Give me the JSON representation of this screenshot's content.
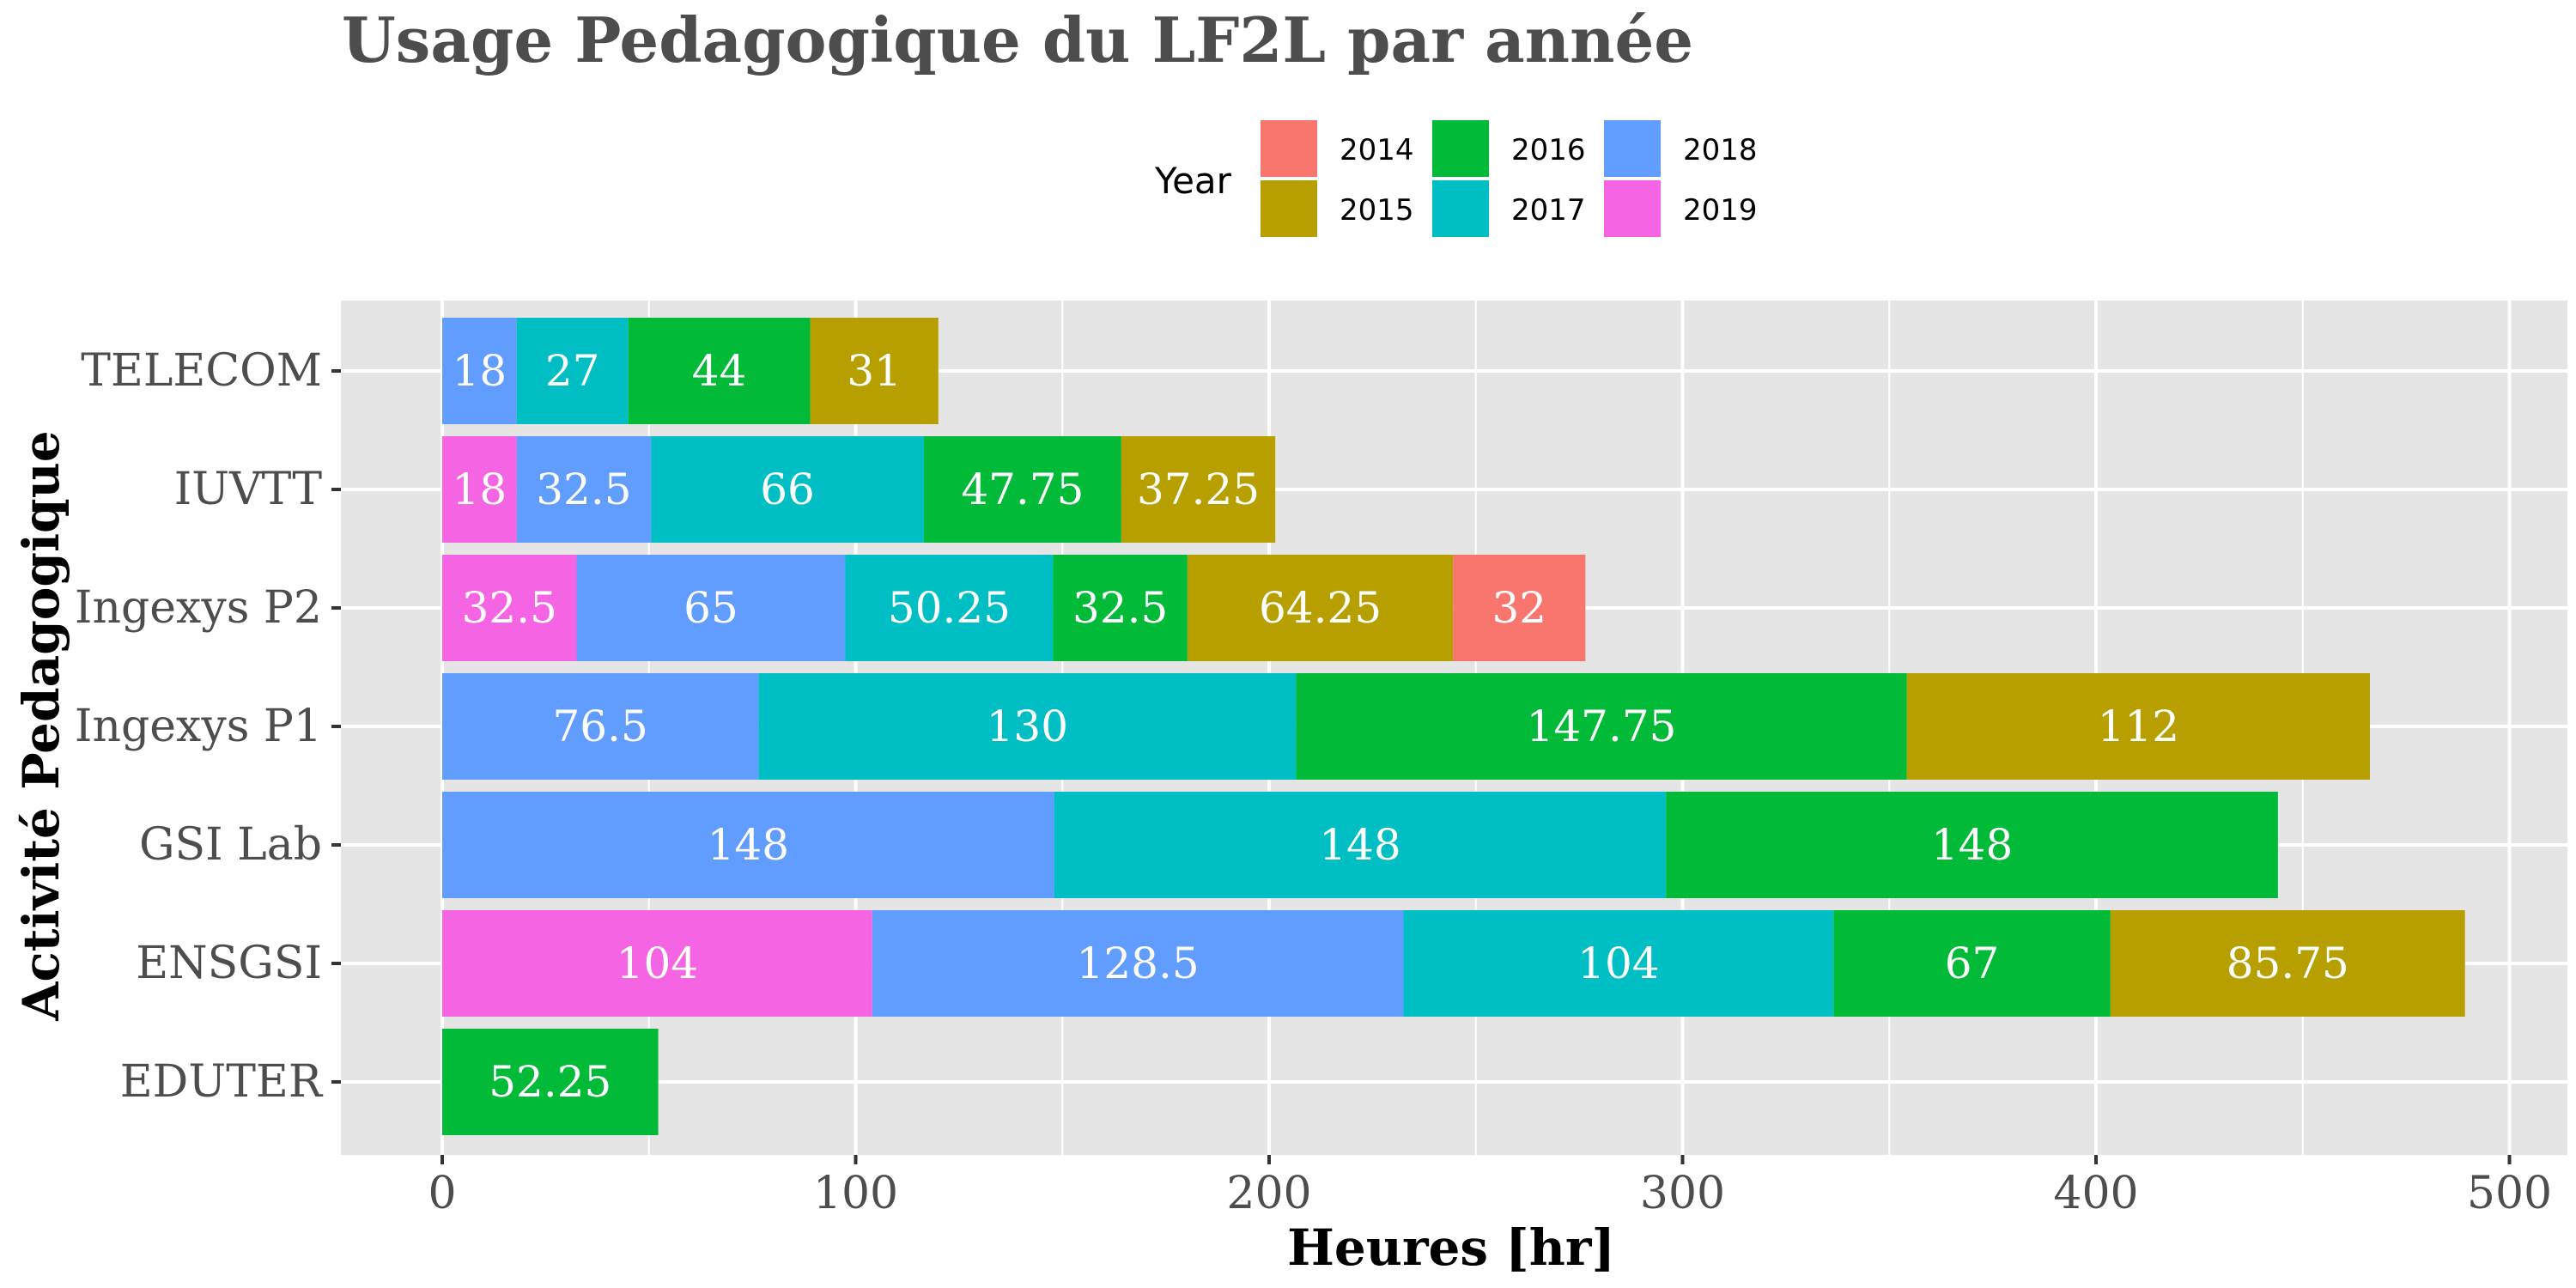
{
  "chart_data": {
    "type": "bar",
    "orientation": "horizontal",
    "stacked": true,
    "title": "Usage Pedagogique du LF2L par année",
    "xlabel": "Heures [hr]",
    "ylabel": "Activité Pedagogique",
    "xlim": [
      -25,
      515
    ],
    "x_ticks": [
      0,
      100,
      200,
      300,
      400,
      500
    ],
    "grid": true,
    "legend": {
      "title": "Year",
      "position": "top",
      "entries": [
        "2014",
        "2015",
        "2016",
        "2017",
        "2018",
        "2019"
      ]
    },
    "categories": [
      "TELECOM",
      "IUVTT",
      "Ingexys P2",
      "Ingexys P1",
      "GSI Lab",
      "ENSGSI",
      "EDUTER"
    ],
    "stack_order_left_to_right": [
      "2019",
      "2018",
      "2017",
      "2016",
      "2015",
      "2014"
    ],
    "series": [
      {
        "name": "2014",
        "color": "#F8766D",
        "values": [
          0,
          0,
          32,
          0,
          0,
          0,
          0
        ]
      },
      {
        "name": "2015",
        "color": "#B79F00",
        "values": [
          31,
          37.25,
          64.25,
          112,
          0,
          85.75,
          0
        ]
      },
      {
        "name": "2016",
        "color": "#00BA38",
        "values": [
          44,
          47.75,
          32.5,
          147.75,
          148,
          67,
          52.25
        ]
      },
      {
        "name": "2017",
        "color": "#00BFC4",
        "values": [
          27,
          66,
          50.25,
          130,
          148,
          104,
          0
        ]
      },
      {
        "name": "2018",
        "color": "#619CFF",
        "values": [
          18,
          32.5,
          65,
          76.5,
          148,
          128.5,
          0
        ]
      },
      {
        "name": "2019",
        "color": "#F564E3",
        "values": [
          0,
          18,
          32.5,
          0,
          0,
          104,
          0
        ]
      }
    ],
    "colors": {
      "panel_background": "#E5E5E5",
      "grid_line": "#FFFFFF"
    }
  }
}
